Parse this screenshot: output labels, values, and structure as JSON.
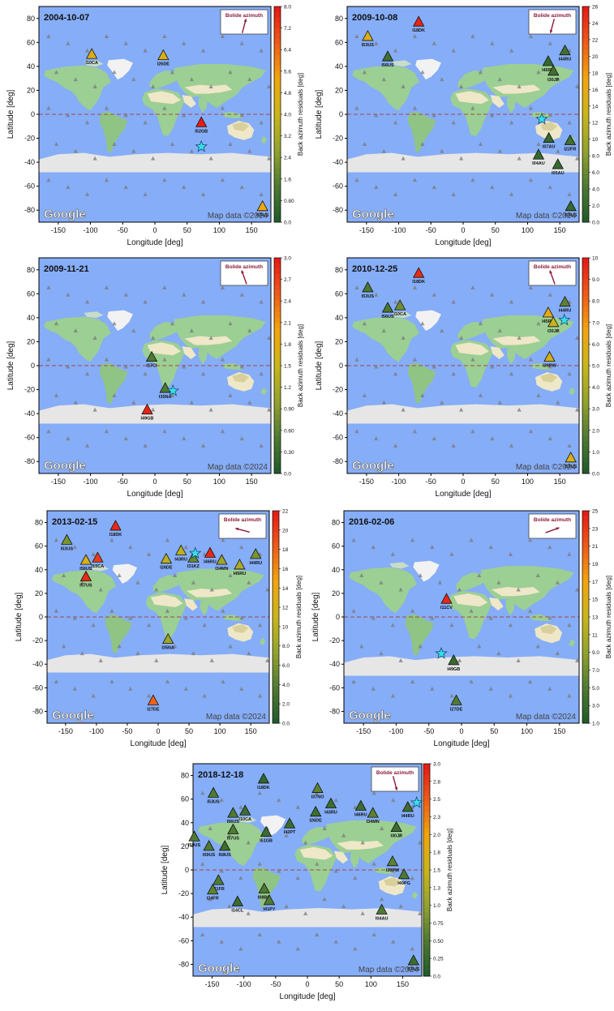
{
  "figure": {
    "xlabel": "Longitude [deg]",
    "ylabel": "Latitude [deg]",
    "colorbar_label": "Back azimuth residuals [deg]",
    "legend_label": "Bolide azimuth",
    "map_credit": "Map data ©2024",
    "google_logo": "Google",
    "colors": {
      "ocean": "#86adf7",
      "land": "#9ccf93",
      "desert": "#eee7c8",
      "ice": "#e6e6e6",
      "frame": "#000000",
      "station": "#7a7a7a",
      "equator": "#a04848",
      "bolide_star": "#33e0f0",
      "legend_arrow": "#8b1a3a",
      "colormap": [
        "#1f5a2a",
        "#4f7a32",
        "#93a32e",
        "#c9b51c",
        "#f1a50e",
        "#ef5a18",
        "#e51717"
      ]
    }
  },
  "chart_data": [
    {
      "type": "scatter",
      "title": "2004-10-07",
      "xlim": [
        -180,
        180
      ],
      "ylim": [
        -90,
        90
      ],
      "xticks": [
        -150,
        -100,
        -50,
        0,
        50,
        100,
        150
      ],
      "yticks": [
        80,
        60,
        40,
        20,
        0,
        -20,
        -40,
        -60,
        -80
      ],
      "colorbar": {
        "min": 0,
        "max": 8.0,
        "ticks": [
          "8.0",
          "7.2",
          "6.4",
          "5.6",
          "4.8",
          "4.0",
          "3.2",
          "2.4",
          "1.6",
          "0.80",
          "0.0"
        ]
      },
      "bolide": {
        "lon": 72,
        "lat": -27,
        "azimuth_deg": 15
      },
      "stations": [
        {
          "name": "I10CA",
          "lon": -98,
          "lat": 50,
          "residual": 4.6
        },
        {
          "name": "I26DE",
          "lon": 13,
          "lat": 49,
          "residual": 4.5
        },
        {
          "name": "I52GB",
          "lon": 72,
          "lat": -7,
          "residual": 7.9
        },
        {
          "name": "I55US",
          "lon": 167,
          "lat": -77,
          "residual": 5.2
        }
      ]
    },
    {
      "type": "scatter",
      "title": "2009-10-08",
      "xlim": [
        -180,
        180
      ],
      "ylim": [
        -90,
        90
      ],
      "xticks": [
        -150,
        -100,
        -50,
        0,
        50,
        100,
        150
      ],
      "yticks": [
        80,
        60,
        40,
        20,
        0,
        -20,
        -40,
        -60,
        -80
      ],
      "colorbar": {
        "min": 0,
        "max": 26,
        "ticks": [
          "26",
          "24",
          "22",
          "20",
          "18",
          "16",
          "14",
          "12",
          "10",
          "8.0",
          "6.0",
          "4.0",
          "2.0",
          "0.0"
        ]
      },
      "bolide": {
        "lon": 122,
        "lat": -4,
        "azimuth_deg": 195
      },
      "stations": [
        {
          "name": "I18DK",
          "lon": -69,
          "lat": 77,
          "residual": 25
        },
        {
          "name": "I53US",
          "lon": -148,
          "lat": 65,
          "residual": 15
        },
        {
          "name": "I56US",
          "lon": -117,
          "lat": 48,
          "residual": 3
        },
        {
          "name": "I44RU",
          "lon": 158,
          "lat": 53,
          "residual": 3
        },
        {
          "name": "I45RU",
          "lon": 132,
          "lat": 44,
          "residual": 2
        },
        {
          "name": "I30JP",
          "lon": 140,
          "lat": 36,
          "residual": 3
        },
        {
          "name": "I07AU",
          "lon": 133,
          "lat": -20,
          "residual": 2
        },
        {
          "name": "I22FR",
          "lon": 166,
          "lat": -22,
          "residual": 3
        },
        {
          "name": "I04AU",
          "lon": 117,
          "lat": -34,
          "residual": 2
        },
        {
          "name": "I05AU",
          "lon": 147,
          "lat": -42,
          "residual": 2
        },
        {
          "name": "I55US",
          "lon": 167,
          "lat": -77,
          "residual": 2
        }
      ]
    },
    {
      "type": "scatter",
      "title": "2009-11-21",
      "xlim": [
        -180,
        180
      ],
      "ylim": [
        -90,
        90
      ],
      "xticks": [
        -150,
        -100,
        -50,
        0,
        50,
        100,
        150
      ],
      "yticks": [
        80,
        60,
        40,
        20,
        0,
        -20,
        -40,
        -60,
        -80
      ],
      "colorbar": {
        "min": 0,
        "max": 3.0,
        "ticks": [
          "3.0",
          "2.7",
          "2.4",
          "2.1",
          "1.8",
          "1.5",
          "1.2",
          "0.90",
          "0.60",
          "0.30",
          "0.0"
        ]
      },
      "bolide": {
        "lon": 28,
        "lat": -21,
        "azimuth_deg": 340
      },
      "stations": [
        {
          "name": "I17CI",
          "lon": -5,
          "lat": 7,
          "residual": 0.5
        },
        {
          "name": "I35NA",
          "lon": 16,
          "lat": -19,
          "residual": 0.5
        },
        {
          "name": "I49GB",
          "lon": -12,
          "lat": -37,
          "residual": 2.9
        }
      ]
    },
    {
      "type": "scatter",
      "title": "2010-12-25",
      "xlim": [
        -180,
        180
      ],
      "ylim": [
        -90,
        90
      ],
      "xticks": [
        -150,
        -100,
        -50,
        0,
        50,
        100,
        150
      ],
      "yticks": [
        80,
        60,
        40,
        20,
        0,
        -20,
        -40,
        -60,
        -80
      ],
      "colorbar": {
        "min": 0,
        "max": 10,
        "ticks": [
          "10",
          "9.0",
          "8.0",
          "7.0",
          "6.0",
          "5.0",
          "4.0",
          "3.0",
          "2.0",
          "1.0",
          "0.0"
        ]
      },
      "bolide": {
        "lon": 157,
        "lat": 38,
        "azimuth_deg": 340
      },
      "stations": [
        {
          "name": "I18DK",
          "lon": -69,
          "lat": 77,
          "residual": 9.5
        },
        {
          "name": "I53US",
          "lon": -148,
          "lat": 65,
          "residual": 1.5
        },
        {
          "name": "I56US",
          "lon": -117,
          "lat": 48,
          "residual": 1.5
        },
        {
          "name": "I10CA",
          "lon": -98,
          "lat": 50,
          "residual": 2.5
        },
        {
          "name": "I44RU",
          "lon": 158,
          "lat": 53,
          "residual": 2
        },
        {
          "name": "I45RU",
          "lon": 132,
          "lat": 44,
          "residual": 6
        },
        {
          "name": "I30JP",
          "lon": 140,
          "lat": 36,
          "residual": 5
        },
        {
          "name": "I39PW",
          "lon": 134,
          "lat": 7,
          "residual": 5.5
        },
        {
          "name": "I55US",
          "lon": 167,
          "lat": -77,
          "residual": 5.5
        }
      ]
    },
    {
      "type": "scatter",
      "title": "2013-02-15",
      "xlim": [
        -180,
        180
      ],
      "ylim": [
        -90,
        90
      ],
      "xticks": [
        -150,
        -100,
        -50,
        0,
        50,
        100,
        150
      ],
      "yticks": [
        80,
        60,
        40,
        20,
        0,
        -20,
        -40,
        -60,
        -80
      ],
      "colorbar": {
        "min": 0,
        "max": 22,
        "ticks": [
          "22",
          "20",
          "18",
          "16",
          "14",
          "12",
          "10",
          "8.0",
          "6.0",
          "4.0",
          "2.0",
          "0.0"
        ]
      },
      "bolide": {
        "lon": 60,
        "lat": 54,
        "azimuth_deg": 285
      },
      "stations": [
        {
          "name": "I18DK",
          "lon": -69,
          "lat": 77,
          "residual": 21
        },
        {
          "name": "I53US",
          "lon": -148,
          "lat": 65,
          "residual": 6
        },
        {
          "name": "I56US",
          "lon": -117,
          "lat": 48,
          "residual": 12
        },
        {
          "name": "I10CA",
          "lon": -98,
          "lat": 50,
          "residual": 20
        },
        {
          "name": "I57US",
          "lon": -117,
          "lat": 34,
          "residual": 21
        },
        {
          "name": "I26DE",
          "lon": 13,
          "lat": 49,
          "residual": 10
        },
        {
          "name": "I43RU",
          "lon": 37,
          "lat": 56,
          "residual": 10
        },
        {
          "name": "I31KZ",
          "lon": 57,
          "lat": 50,
          "residual": 5
        },
        {
          "name": "I46RU",
          "lon": 84,
          "lat": 54,
          "residual": 21
        },
        {
          "name": "I34MN",
          "lon": 103,
          "lat": 48,
          "residual": 8
        },
        {
          "name": "I45RU",
          "lon": 132,
          "lat": 44,
          "residual": 9
        },
        {
          "name": "I44RU",
          "lon": 158,
          "lat": 53,
          "residual": 6
        },
        {
          "name": "I35NA",
          "lon": 16,
          "lat": -19,
          "residual": 8
        },
        {
          "name": "I27DE",
          "lon": -8,
          "lat": -71,
          "residual": 18
        }
      ]
    },
    {
      "type": "scatter",
      "title": "2016-02-06",
      "xlim": [
        -180,
        180
      ],
      "ylim": [
        -90,
        90
      ],
      "xticks": [
        -150,
        -100,
        -50,
        0,
        50,
        100,
        150
      ],
      "yticks": [
        80,
        60,
        40,
        20,
        0,
        -20,
        -40,
        -60,
        -80
      ],
      "colorbar": {
        "min": 1.0,
        "max": 25,
        "ticks": [
          "25",
          "23",
          "21",
          "19",
          "17",
          "15",
          "13",
          "11",
          "9.0",
          "7.0",
          "5.0",
          "3.0",
          "1.0"
        ]
      },
      "bolide": {
        "lon": -31,
        "lat": -31,
        "azimuth_deg": 70
      },
      "stations": [
        {
          "name": "I11CV",
          "lon": -23,
          "lat": 15,
          "residual": 24
        },
        {
          "name": "I49GB",
          "lon": -12,
          "lat": -37,
          "residual": 3
        },
        {
          "name": "I27DE",
          "lon": -8,
          "lat": -71,
          "residual": 5
        }
      ]
    },
    {
      "type": "scatter",
      "title": "2018-12-18",
      "xlim": [
        -180,
        180
      ],
      "ylim": [
        -90,
        90
      ],
      "xticks": [
        -150,
        -100,
        -50,
        0,
        50,
        100,
        150
      ],
      "yticks": [
        80,
        60,
        40,
        20,
        0,
        -20,
        -40,
        -60,
        -80
      ],
      "colorbar": {
        "min": 0,
        "max": 3.0,
        "ticks": [
          "3.0",
          "2.8",
          "2.5",
          "2.3",
          "2.0",
          "1.8",
          "1.5",
          "1.3",
          "1.0",
          "0.75",
          "0.50",
          "0.25",
          "0.0"
        ]
      },
      "bolide": {
        "lon": 172,
        "lat": 57,
        "azimuth_deg": 165
      },
      "stations": [
        {
          "name": "I18DK",
          "lon": -69,
          "lat": 77,
          "residual": 0.2
        },
        {
          "name": "I53US",
          "lon": -148,
          "lat": 65,
          "residual": 0.5
        },
        {
          "name": "I37NO",
          "lon": 16,
          "lat": 69,
          "residual": 0.6
        },
        {
          "name": "I56US",
          "lon": -117,
          "lat": 48,
          "residual": 0.5
        },
        {
          "name": "I10CA",
          "lon": -98,
          "lat": 50,
          "residual": 0.3
        },
        {
          "name": "I57US",
          "lon": -117,
          "lat": 34,
          "residual": 0.5
        },
        {
          "name": "I51GB",
          "lon": -65,
          "lat": 32,
          "residual": 0.3
        },
        {
          "name": "I42PT",
          "lon": -28,
          "lat": 39,
          "residual": 0.3
        },
        {
          "name": "I43RU",
          "lon": 37,
          "lat": 56,
          "residual": 0.3
        },
        {
          "name": "I26DE",
          "lon": 13,
          "lat": 49,
          "residual": 0.3
        },
        {
          "name": "I46RU",
          "lon": 84,
          "lat": 54,
          "residual": 0.3
        },
        {
          "name": "I34MN",
          "lon": 103,
          "lat": 48,
          "residual": 0.6
        },
        {
          "name": "I44RU",
          "lon": 158,
          "lat": 53,
          "residual": 0.3
        },
        {
          "name": "I30JP",
          "lon": 140,
          "lat": 36,
          "residual": 0.3
        },
        {
          "name": "I59US",
          "lon": -178,
          "lat": 28,
          "residual": 0.5
        },
        {
          "name": "I59US",
          "lon": -155,
          "lat": 20,
          "residual": 0.5
        },
        {
          "name": "I58US",
          "lon": -130,
          "lat": 20,
          "residual": 0.3
        },
        {
          "name": "I21FR",
          "lon": -140,
          "lat": -9,
          "residual": 0.5
        },
        {
          "name": "I24FR",
          "lon": -149,
          "lat": -17,
          "residual": 0.6
        },
        {
          "name": "I14CL",
          "lon": -110,
          "lat": -27,
          "residual": 0.3
        },
        {
          "name": "I08BO",
          "lon": -68,
          "lat": -16,
          "residual": 0.5
        },
        {
          "name": "I41PY",
          "lon": -60,
          "lat": -26,
          "residual": 0.5
        },
        {
          "name": "I39PW",
          "lon": 134,
          "lat": 7,
          "residual": 0.6
        },
        {
          "name": "I40PG",
          "lon": 152,
          "lat": -4,
          "residual": 0.5
        },
        {
          "name": "I04AU",
          "lon": 117,
          "lat": -34,
          "residual": 0.5
        },
        {
          "name": "I55US",
          "lon": 167,
          "lat": -77,
          "residual": 0.3
        }
      ]
    }
  ]
}
